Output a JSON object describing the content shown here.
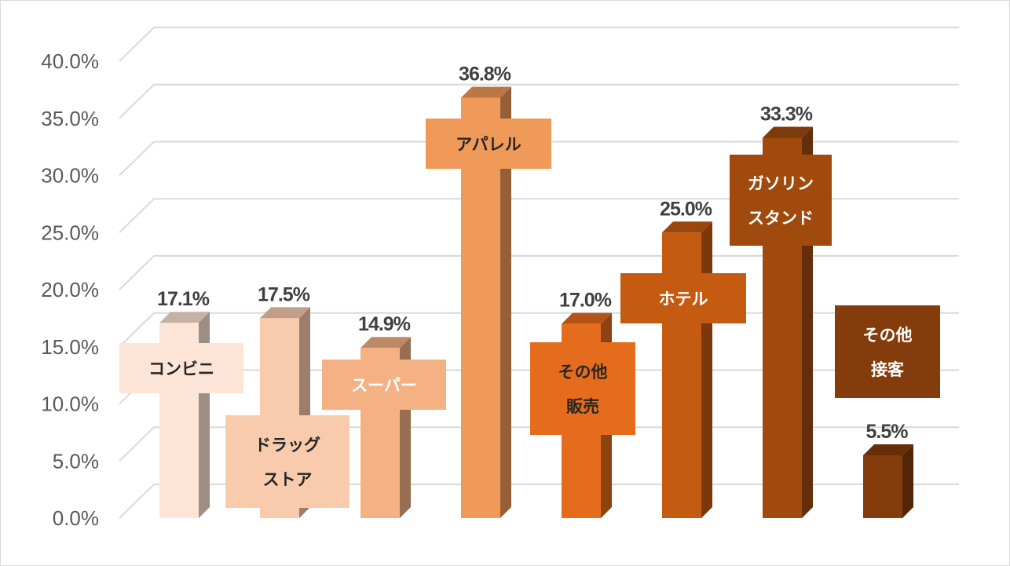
{
  "chart_data": {
    "type": "bar",
    "title": "",
    "xlabel": "",
    "ylabel": "",
    "ylim": [
      0,
      40
    ],
    "grid": true,
    "legend": "none",
    "style": "3d-columns",
    "tick_labels": [
      "0.0%",
      "5.0%",
      "10.0%",
      "15.0%",
      "20.0%",
      "25.0%",
      "30.0%",
      "35.0%",
      "40.0%"
    ],
    "categories": [
      [
        "コンビニ"
      ],
      [
        "ドラッグ",
        "ストア"
      ],
      [
        "スーパー"
      ],
      [
        "アパレル"
      ],
      [
        "その他",
        "販売"
      ],
      [
        "ホテル"
      ],
      [
        "ガソリン",
        "スタンド"
      ],
      [
        "その他",
        "接客"
      ]
    ],
    "values": [
      17.1,
      17.5,
      14.9,
      36.8,
      17.0,
      25.0,
      33.3,
      5.5
    ],
    "value_labels": [
      "17.1%",
      "17.5%",
      "14.9%",
      "36.8%",
      "17.0%",
      "25.0%",
      "33.3%",
      "5.5%"
    ],
    "colors": [
      "#fce4d6",
      "#f8cbad",
      "#f4b183",
      "#f09a5a",
      "#e46c1c",
      "#c55a11",
      "#a04a0e",
      "#843c0c"
    ],
    "label_text_colors": [
      "#262626",
      "#262626",
      "#ffffff",
      "#262626",
      "#262626",
      "#ffffff",
      "#ffffff",
      "#ffffff"
    ]
  }
}
